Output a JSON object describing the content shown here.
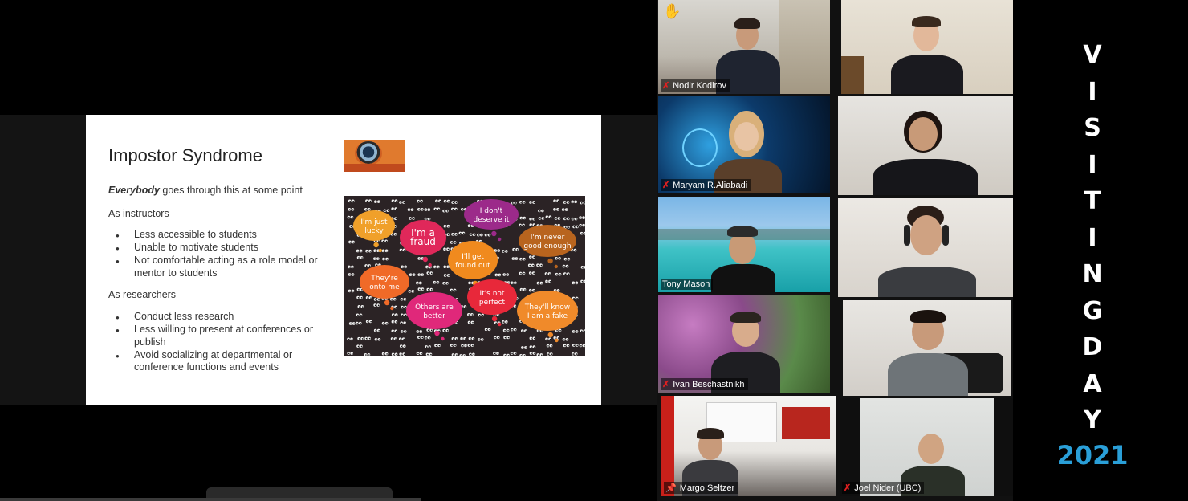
{
  "slide": {
    "title": "Impostor Syndrome",
    "intro_bold": "Everybody",
    "intro_rest": " goes through this at some point",
    "section1": {
      "heading": "As instructors",
      "bullets": [
        "Less accessible to students",
        "Unable to motivate students",
        "Not comfortable acting as a role model or mentor to students"
      ]
    },
    "section2": {
      "heading": "As researchers",
      "bullets": [
        "Conduct less research",
        "Less willing to present at conferences or publish",
        "Avoid socializing at departmental or conference functions and events"
      ]
    },
    "art_bubbles": [
      {
        "line1": "I'm just",
        "line2": "lucky",
        "color": "#f0a02a"
      },
      {
        "line1": "I'm a",
        "line2": "fraud",
        "color": "#e0285a"
      },
      {
        "line1": "I don't",
        "line2": "deserve it",
        "color": "#9c2a8a"
      },
      {
        "line1": "I'm never",
        "line2": "good enough",
        "color": "#b8641e"
      },
      {
        "line1": "I'll get",
        "line2": "found out",
        "color": "#f08a1e"
      },
      {
        "line1": "They're",
        "line2": "onto me",
        "color": "#f06a28"
      },
      {
        "line1": "Others are",
        "line2": "better",
        "color": "#e0287a"
      },
      {
        "line1": "It's not",
        "line2": "perfect",
        "color": "#e8283a"
      },
      {
        "line1": "They'll know",
        "line2": "I am a fake",
        "color": "#f08a2a"
      }
    ]
  },
  "participants": [
    {
      "name": "Nodir Kodirov",
      "muted": true,
      "hand_raised": true,
      "hand_icon": "raised-hand-icon"
    },
    {
      "name": "",
      "muted": false
    },
    {
      "name": "Maryam R.Aliabadi",
      "muted": true
    },
    {
      "name": "",
      "muted": false
    },
    {
      "name": "Tony Mason",
      "muted": false
    },
    {
      "name": "",
      "muted": false
    },
    {
      "name": "Ivan Beschastnikh",
      "muted": true
    },
    {
      "name": "",
      "muted": false
    },
    {
      "name": "Margo Seltzer",
      "muted": false,
      "pinned": true,
      "speaking": true
    },
    {
      "name": "Joel Nider (UBC)",
      "muted": true
    }
  ],
  "icons": {
    "mute": "✗",
    "pin": "📌",
    "hand": "✋"
  },
  "brand": {
    "letters": [
      "V",
      "I",
      "S",
      "I",
      "T",
      "I",
      "N",
      "G",
      "D",
      "A",
      "Y"
    ],
    "year": "2021",
    "year_color": "#2a9fd8"
  }
}
